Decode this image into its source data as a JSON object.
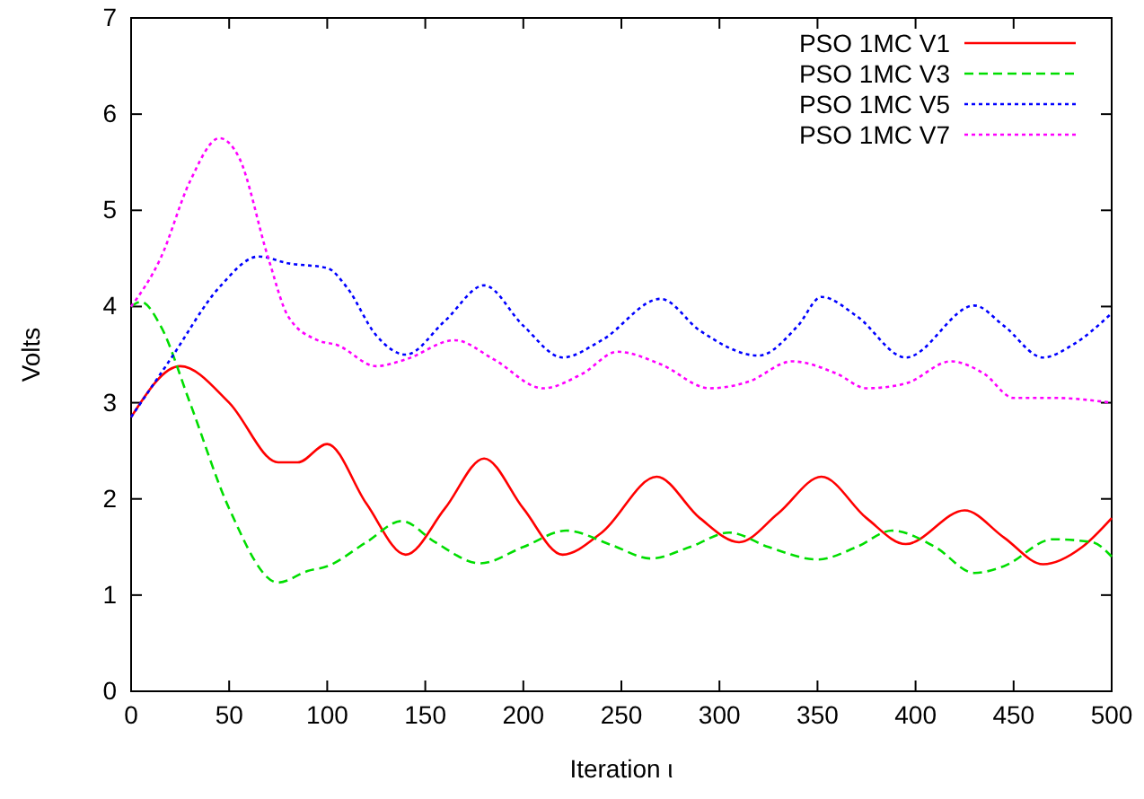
{
  "chart_data": {
    "type": "line",
    "xlabel": "Iteration ι",
    "ylabel": "Volts",
    "xlim": [
      0,
      500
    ],
    "xticks": [
      0,
      50,
      100,
      150,
      200,
      250,
      300,
      350,
      400,
      450,
      500
    ],
    "ylim": [
      0,
      7
    ],
    "yticks": [
      0,
      1,
      2,
      3,
      4,
      5,
      6,
      7
    ],
    "grid": false,
    "legend": "top right",
    "marker": "none",
    "series": [
      {
        "name": "PSO 1MC V1",
        "color": "#ff0000",
        "line_style": "solid",
        "x": [
          0,
          25,
          50,
          75,
          85,
          100,
          120,
          140,
          160,
          180,
          200,
          220,
          240,
          268,
          290,
          310,
          330,
          352,
          375,
          395,
          425,
          445,
          465,
          485,
          500
        ],
        "values": [
          2.85,
          3.38,
          3.0,
          2.38,
          2.38,
          2.57,
          1.95,
          1.42,
          1.9,
          2.42,
          1.9,
          1.42,
          1.65,
          2.23,
          1.8,
          1.55,
          1.85,
          2.23,
          1.8,
          1.53,
          1.88,
          1.6,
          1.32,
          1.5,
          1.8
        ]
      },
      {
        "name": "PSO 1MC V3",
        "color": "#00dd00",
        "line_style": "dashed",
        "x": [
          0,
          5,
          15,
          30,
          50,
          75,
          90,
          100,
          120,
          138,
          155,
          178,
          200,
          222,
          245,
          265,
          285,
          305,
          325,
          350,
          370,
          388,
          410,
          430,
          445,
          470,
          490,
          500
        ],
        "values": [
          4.0,
          4.05,
          3.8,
          3.0,
          1.9,
          1.13,
          1.25,
          1.3,
          1.55,
          1.77,
          1.55,
          1.33,
          1.5,
          1.67,
          1.52,
          1.38,
          1.5,
          1.65,
          1.5,
          1.37,
          1.5,
          1.67,
          1.5,
          1.23,
          1.3,
          1.58,
          1.55,
          1.4
        ]
      },
      {
        "name": "PSO 1MC V5",
        "color": "#0000ff",
        "line_style": "dotted",
        "x": [
          0,
          20,
          45,
          65,
          80,
          100,
          110,
          125,
          140,
          160,
          180,
          200,
          220,
          240,
          270,
          290,
          320,
          340,
          352,
          370,
          395,
          430,
          445,
          465,
          480,
          500
        ],
        "values": [
          2.85,
          3.45,
          4.2,
          4.52,
          4.45,
          4.4,
          4.2,
          3.7,
          3.5,
          3.85,
          4.22,
          3.8,
          3.47,
          3.65,
          4.08,
          3.75,
          3.49,
          3.8,
          4.1,
          3.9,
          3.47,
          4.01,
          3.8,
          3.47,
          3.6,
          3.93
        ]
      },
      {
        "name": "PSO 1MC V7",
        "color": "#ff00ff",
        "line_style": "dotted",
        "x": [
          0,
          15,
          30,
          45,
          55,
          70,
          80,
          95,
          105,
          125,
          140,
          165,
          185,
          210,
          230,
          248,
          270,
          295,
          315,
          337,
          360,
          375,
          395,
          418,
          435,
          450,
          470,
          500
        ],
        "values": [
          4.0,
          4.5,
          5.3,
          5.75,
          5.55,
          4.5,
          3.9,
          3.65,
          3.6,
          3.38,
          3.45,
          3.65,
          3.45,
          3.15,
          3.3,
          3.53,
          3.4,
          3.15,
          3.22,
          3.43,
          3.3,
          3.15,
          3.2,
          3.43,
          3.3,
          3.05,
          3.05,
          3.0
        ]
      }
    ]
  }
}
